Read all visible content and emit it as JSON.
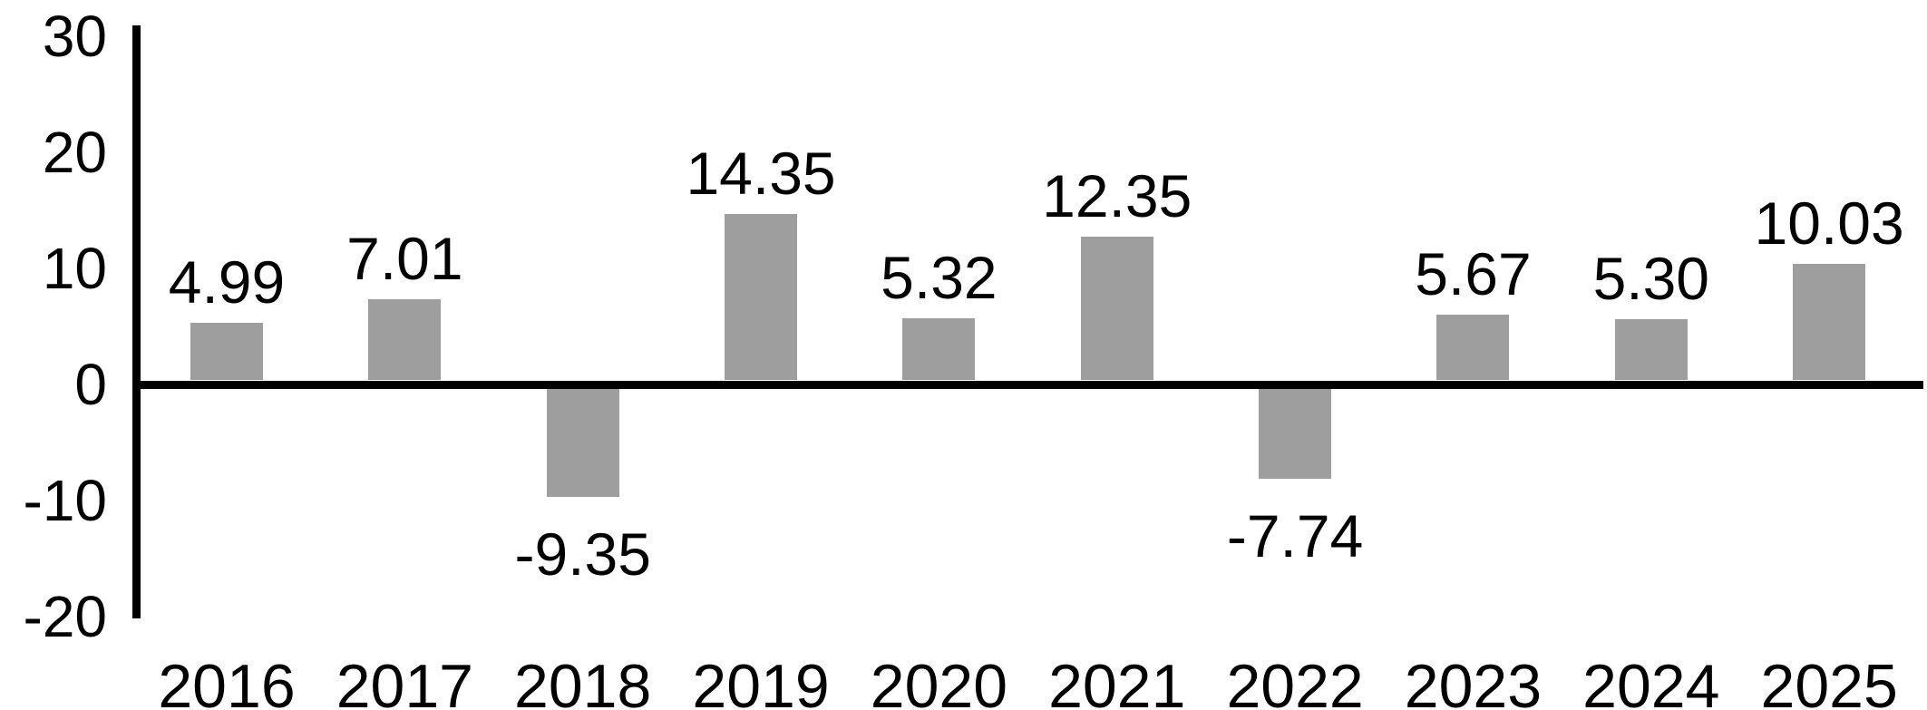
{
  "chart_data": {
    "type": "bar",
    "categories": [
      "2016",
      "2017",
      "2018",
      "2019",
      "2020",
      "2021",
      "2022",
      "2023",
      "2024",
      "2025"
    ],
    "values": [
      4.99,
      7.01,
      -9.35,
      14.35,
      5.32,
      12.35,
      -7.74,
      5.67,
      5.3,
      10.03
    ],
    "value_labels": [
      "4.99",
      "7.01",
      "-9.35",
      "14.35",
      "5.32",
      "12.35",
      "-7.74",
      "5.67",
      "5.30",
      "10.03"
    ],
    "title": "",
    "xlabel": "",
    "ylabel": "",
    "ylim": [
      -20,
      30
    ],
    "y_ticks": [
      30,
      20,
      10,
      0,
      -10,
      -20
    ],
    "y_tick_labels": [
      "30",
      "20",
      "10",
      "0",
      "-10",
      "-20"
    ],
    "grid": false,
    "legend_position": "none",
    "series_name": "",
    "bar_color": "#9e9e9e",
    "axis_color": "#000000",
    "text_color": "#000000",
    "background_color": "#ffffff"
  }
}
